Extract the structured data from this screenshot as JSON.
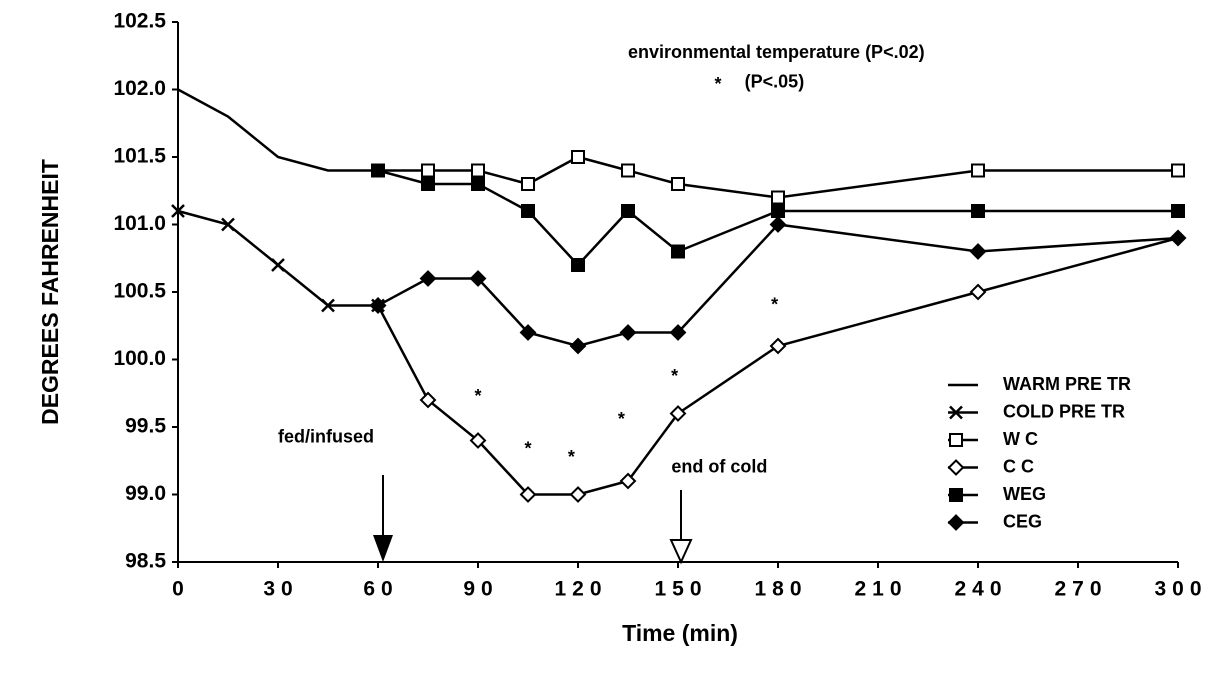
{
  "chart_data": {
    "type": "line",
    "x_label": "Time (min)",
    "y_label": "DEGREES FAHRENHEIT",
    "xlim": [
      0,
      300
    ],
    "xticks": [
      0,
      30,
      60,
      90,
      120,
      150,
      180,
      210,
      240,
      270,
      300
    ],
    "ylim": [
      98.5,
      102.5
    ],
    "yticks": [
      98.5,
      {
        "value": 99.0,
        "label": "99.0"
      },
      99.5,
      {
        "value": 100.0,
        "label": "100.0"
      },
      100.5,
      {
        "value": 101.0,
        "label": "101.0"
      },
      101.5,
      {
        "value": 102.0,
        "label": "102.0"
      },
      102.5
    ],
    "series": [
      {
        "name": "WARM PRE TR",
        "color": "#000000",
        "marker": "none",
        "x": [
          0,
          15,
          30,
          45,
          60
        ],
        "values": [
          102.0,
          101.8,
          101.5,
          101.4,
          101.4
        ]
      },
      {
        "name": "COLD PRE TR",
        "color": "#000000",
        "marker": "x",
        "x": [
          0,
          15,
          30,
          45,
          60
        ],
        "values": [
          101.1,
          101.0,
          100.7,
          100.4,
          100.4
        ]
      },
      {
        "name": "W C",
        "color": "#000000",
        "marker": "open-square",
        "x": [
          60,
          75,
          90,
          105,
          120,
          135,
          150,
          180,
          240,
          300
        ],
        "values": [
          101.4,
          101.4,
          101.4,
          101.3,
          101.5,
          101.4,
          101.3,
          101.2,
          101.4,
          101.4
        ]
      },
      {
        "name": "C C",
        "color": "#000000",
        "marker": "open-diamond",
        "x": [
          60,
          75,
          90,
          105,
          120,
          135,
          150,
          180,
          240,
          300
        ],
        "values": [
          100.4,
          99.7,
          99.4,
          99.0,
          99.0,
          99.1,
          99.6,
          100.1,
          100.5,
          100.9
        ]
      },
      {
        "name": "WEG",
        "color": "#000000",
        "marker": "filled-square",
        "x": [
          60,
          75,
          90,
          105,
          120,
          135,
          150,
          180,
          240,
          300
        ],
        "values": [
          101.4,
          101.3,
          101.3,
          101.1,
          100.7,
          101.1,
          100.8,
          101.1,
          101.1,
          101.1
        ]
      },
      {
        "name": "CEG",
        "color": "#000000",
        "marker": "filled-diamond",
        "x": [
          60,
          75,
          90,
          105,
          120,
          135,
          150,
          180,
          240,
          300
        ],
        "values": [
          100.4,
          100.6,
          100.6,
          100.2,
          100.1,
          100.2,
          100.2,
          101.0,
          100.8,
          100.9
        ]
      }
    ],
    "annotations": [
      {
        "text": "environmental temperature (P<.02)",
        "x": 135,
        "y": 102.27
      },
      {
        "text": "*",
        "x": 162,
        "y": 102.03
      },
      {
        "text": "(P<.05)",
        "x": 170,
        "y": 102.05
      },
      {
        "text": "fed/infused",
        "x": 30,
        "y": 99.42
      },
      {
        "text": "end of cold",
        "x": 148,
        "y": 99.2
      },
      {
        "text": "*",
        "x": 90,
        "y": 99.72
      },
      {
        "text": "*",
        "x": 105,
        "y": 99.33
      },
      {
        "text": "*",
        "x": 118,
        "y": 99.27
      },
      {
        "text": "*",
        "x": 133,
        "y": 99.55
      },
      {
        "text": "*",
        "x": 149,
        "y": 99.87
      },
      {
        "text": "*",
        "x": 179,
        "y": 100.4
      }
    ],
    "legend": "lower right"
  }
}
